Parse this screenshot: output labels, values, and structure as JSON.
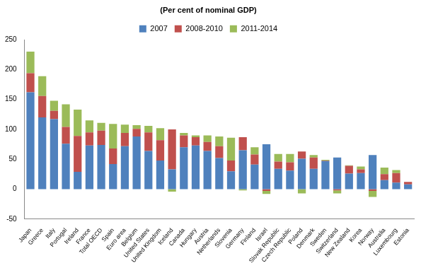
{
  "chart_data": {
    "type": "bar",
    "title": "(Per cent of nominal GDP)",
    "categories": [
      "Japan",
      "Greece",
      "Italy",
      "Portugal",
      "Ireland",
      "France",
      "Total OECD",
      "Spain",
      "Euro area",
      "Belgium",
      "United States",
      "United Kingdom",
      "Iceland",
      "Canada",
      "Hungary",
      "Austria",
      "Netherlands",
      "Slovenia",
      "Germany",
      "Finland",
      "Israel",
      "Slovak Republic",
      "Czech Republic",
      "Poland",
      "Denmark",
      "Sweden",
      "Switzerland",
      "New Zealand",
      "Korea",
      "Norway",
      "Australia",
      "Luxembourg",
      "Estonia"
    ],
    "series": [
      {
        "name": "2007",
        "color": "#4f81bd",
        "values": [
          162,
          120,
          117,
          76,
          29,
          73,
          74,
          42,
          72,
          88,
          64,
          48,
          33,
          70,
          73,
          64,
          52,
          30,
          65,
          41,
          75,
          34,
          31,
          51,
          34,
          47,
          53,
          26,
          27,
          57,
          15,
          11,
          8
        ]
      },
      {
        "name": "2008-2010",
        "color": "#c0504d",
        "values": [
          32,
          36,
          14,
          28,
          60,
          22,
          24,
          26,
          22,
          13,
          31,
          34,
          67,
          20,
          14,
          15,
          20,
          18,
          22,
          17,
          -3,
          12,
          14,
          12,
          19,
          1,
          -2,
          13,
          6,
          -3,
          10,
          16,
          4
        ]
      },
      {
        "name": "2011-2014",
        "color": "#9bbb59",
        "values": [
          36,
          33,
          17,
          38,
          44,
          20,
          13,
          41,
          14,
          6,
          11,
          20,
          -4,
          4,
          3,
          11,
          16,
          38,
          -2,
          12,
          -5,
          13,
          14,
          -7,
          4,
          1,
          -5,
          1,
          5,
          -10,
          11,
          5,
          0
        ]
      }
    ],
    "ylim": [
      -50,
      250
    ],
    "yticks": [
      -50,
      0,
      50,
      100,
      150,
      200,
      250
    ],
    "stacked": true,
    "grid": false,
    "legend": "top"
  }
}
